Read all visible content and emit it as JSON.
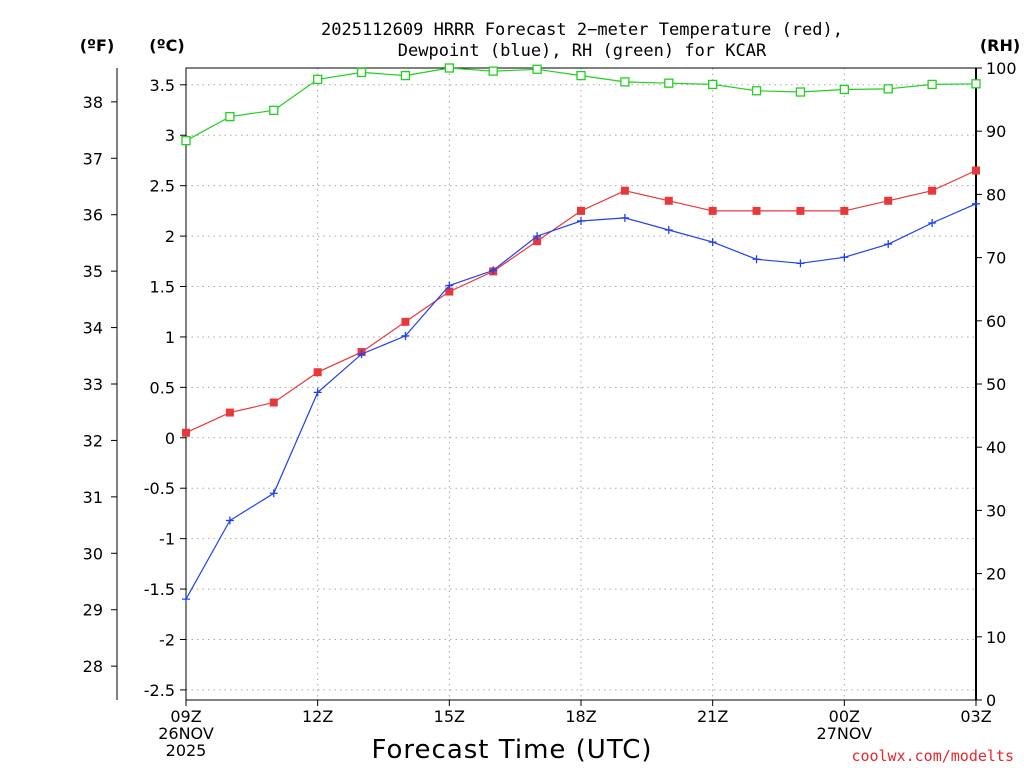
{
  "chart_data": {
    "type": "line",
    "title": "2025112609 HRRR Forecast 2−meter Temperature (red),",
    "subtitle": "Dewpoint (blue), RH (green) for KCAR",
    "xlabel": "Forecast Time (UTC)",
    "credit": "coolwx.com/modelts",
    "x": [
      0,
      1,
      2,
      3,
      4,
      5,
      6,
      7,
      8,
      9,
      10,
      11,
      12,
      13,
      14,
      15,
      16,
      17,
      18
    ],
    "xlim": [
      0,
      18
    ],
    "x_ticks": [
      {
        "x": 0,
        "lines": [
          "09Z",
          "26NOV",
          "2025"
        ]
      },
      {
        "x": 3,
        "lines": [
          "12Z"
        ]
      },
      {
        "x": 6,
        "lines": [
          "15Z"
        ]
      },
      {
        "x": 9,
        "lines": [
          "18Z"
        ]
      },
      {
        "x": 12,
        "lines": [
          "21Z"
        ]
      },
      {
        "x": 15,
        "lines": [
          "00Z",
          "27NOV"
        ]
      },
      {
        "x": 18,
        "lines": [
          "03Z"
        ]
      }
    ],
    "axes": {
      "fahrenheit": {
        "unit_label": "(ºF)",
        "range": [
          27.4,
          38.6
        ],
        "ticks": [
          28,
          29,
          30,
          31,
          32,
          33,
          34,
          35,
          36,
          37,
          38
        ]
      },
      "celsius": {
        "unit_label": "(ºC)",
        "range": [
          -2.6,
          3.6667
        ],
        "ticks": [
          "-2.5",
          "-2",
          "-1.5",
          "-1",
          "-0.5",
          "0",
          "0.5",
          "1",
          "1.5",
          "2",
          "2.5",
          "3",
          "3.5"
        ]
      },
      "rh": {
        "unit_label": "(RH)",
        "range": [
          0,
          100
        ],
        "ticks": [
          0,
          10,
          20,
          30,
          40,
          50,
          60,
          70,
          80,
          90,
          100
        ]
      }
    },
    "series": [
      {
        "name": "Temperature",
        "color": "#e8383c",
        "marker": "filled-square",
        "axis": "celsius",
        "values": [
          0.05,
          0.25,
          0.35,
          0.65,
          0.85,
          1.15,
          1.45,
          1.65,
          1.95,
          2.25,
          2.45,
          2.35,
          2.25,
          2.25,
          2.25,
          2.25,
          2.35,
          2.45,
          2.65
        ]
      },
      {
        "name": "Dewpoint",
        "color": "#2040f0",
        "marker": "plus",
        "axis": "celsius",
        "values": [
          -1.6,
          -0.82,
          -0.55,
          0.45,
          0.83,
          1.01,
          1.51,
          1.66,
          2.0,
          2.15,
          2.18,
          2.06,
          1.94,
          1.77,
          1.73,
          1.79,
          1.92,
          2.13,
          2.32
        ]
      },
      {
        "name": "RH",
        "color": "#22d022",
        "marker": "open-square",
        "axis": "rh",
        "values": [
          88.5,
          92.3,
          93.3,
          98.2,
          99.3,
          98.8,
          100,
          99.5,
          99.8,
          98.8,
          97.8,
          97.6,
          97.4,
          96.4,
          96.2,
          96.6,
          96.7,
          97.4,
          97.5
        ]
      }
    ]
  }
}
